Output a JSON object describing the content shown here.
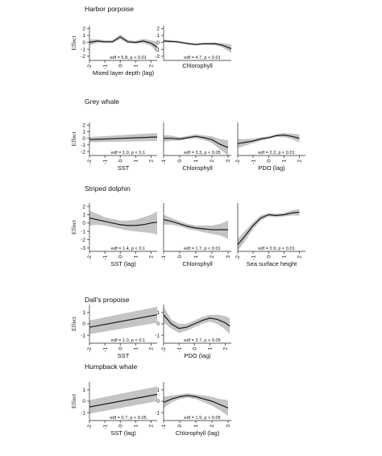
{
  "y_axis_label": "Effect",
  "chart_data": [
    {
      "type": "line",
      "group": "Harbor porpoise",
      "xlabel": "Mixed layer depth (lag)",
      "ylabel": "Effect",
      "annotation": "edf = 5.8, p < 0.01",
      "xlim": [
        -2,
        2.4
      ],
      "ylim": [
        -2.6,
        2.4
      ],
      "xticks": [
        "-2",
        "-1",
        "0",
        "1",
        "2"
      ],
      "yticks": [
        "-2",
        "-1",
        "0",
        "1",
        "2"
      ],
      "x": [
        -2,
        -1.5,
        -1,
        -0.5,
        0,
        0.5,
        1,
        1.5,
        2,
        2.4
      ],
      "y": [
        0.0,
        0.2,
        0.1,
        0.1,
        0.8,
        0.1,
        0.0,
        0.2,
        -0.1,
        -0.7
      ],
      "lower": [
        -0.45,
        -0.05,
        -0.1,
        -0.1,
        0.45,
        -0.15,
        -0.2,
        -0.1,
        -0.5,
        -1.5
      ],
      "upper": [
        0.45,
        0.45,
        0.3,
        0.3,
        1.15,
        0.35,
        0.2,
        0.5,
        0.3,
        0.1
      ]
    },
    {
      "type": "line",
      "group": "Harbor porpoise",
      "xlabel": "Chlorophyll",
      "ylabel": "",
      "annotation": "edf = 4.7, p < 0.01",
      "xlim": [
        -2,
        3.2
      ],
      "ylim": [
        -2.6,
        2.4
      ],
      "xticks": [],
      "yticks": [
        "-2",
        "-1",
        "0",
        "1",
        "2"
      ],
      "x": [
        -2,
        -1,
        0,
        0.5,
        1,
        2,
        2.5,
        3.2
      ],
      "y": [
        0.2,
        0.1,
        -0.2,
        -0.3,
        -0.2,
        -0.2,
        -0.4,
        -0.9
      ],
      "lower": [
        0.0,
        -0.05,
        -0.35,
        -0.45,
        -0.35,
        -0.4,
        -0.7,
        -1.5
      ],
      "upper": [
        0.4,
        0.25,
        -0.05,
        -0.15,
        -0.05,
        0.0,
        -0.1,
        -0.3
      ]
    },
    {
      "type": "line",
      "group": "Grey whale",
      "xlabel": "SST",
      "ylabel": "Effect",
      "annotation": "edf = 1.0, p < 0.1",
      "xlim": [
        -2,
        2.4
      ],
      "ylim": [
        -2.6,
        2.4
      ],
      "xticks": [
        "-2",
        "-1",
        "0",
        "1",
        "2"
      ],
      "yticks": [
        "-2",
        "-1",
        "0",
        "1",
        "2"
      ],
      "x": [
        -2,
        2.4
      ],
      "y": [
        -0.2,
        0.2
      ],
      "lower": [
        -0.6,
        -0.4
      ],
      "upper": [
        0.2,
        0.8
      ]
    },
    {
      "type": "line",
      "group": "Grey whale",
      "xlabel": "Chlorophyll",
      "ylabel": "",
      "annotation": "edf = 3.3, p < 0.05",
      "xlim": [
        -1,
        3.2
      ],
      "ylim": [
        -2.6,
        2.4
      ],
      "xticks": [
        "-1",
        "0",
        "1",
        "2",
        "3"
      ],
      "yticks": [],
      "x": [
        -1,
        -0.5,
        0,
        0.5,
        1,
        1.5,
        2,
        2.5,
        3
      ],
      "y": [
        0.0,
        0.0,
        -0.1,
        0.1,
        0.3,
        0.1,
        -0.2,
        -0.9,
        -1.4
      ],
      "lower": [
        -0.5,
        -0.4,
        -0.35,
        -0.15,
        0.0,
        -0.25,
        -0.7,
        -1.7,
        -2.6
      ],
      "upper": [
        0.5,
        0.4,
        0.15,
        0.35,
        0.6,
        0.45,
        0.3,
        -0.1,
        -0.3
      ]
    },
    {
      "type": "line",
      "group": "Grey whale",
      "xlabel": "PDO (lag)",
      "ylabel": "",
      "annotation": "edf = 2.2, p < 0.01",
      "xlim": [
        -2,
        2.4
      ],
      "ylim": [
        -2.6,
        2.4
      ],
      "xticks": [
        "-2",
        "-1",
        "0",
        "1",
        "2"
      ],
      "yticks": [],
      "x": [
        -2,
        -1.5,
        -1,
        -0.5,
        0,
        0.5,
        1,
        1.5,
        2
      ],
      "y": [
        -0.8,
        -0.6,
        -0.4,
        -0.1,
        0.1,
        0.4,
        0.5,
        0.3,
        0.0
      ],
      "lower": [
        -1.5,
        -1.1,
        -0.75,
        -0.35,
        -0.1,
        0.2,
        0.2,
        -0.1,
        -0.6
      ],
      "upper": [
        -0.1,
        -0.1,
        -0.05,
        0.15,
        0.3,
        0.6,
        0.8,
        0.7,
        0.6
      ]
    },
    {
      "type": "line",
      "group": "Striped dolphin",
      "xlabel": "SST (lag)",
      "ylabel": "Effect",
      "annotation": "edf = 1.4, p < 0.1",
      "xlim": [
        -2,
        2.4
      ],
      "ylim": [
        -3.4,
        2.4
      ],
      "xticks": [
        "-2",
        "-1",
        "0",
        "1",
        "2"
      ],
      "yticks": [
        "-3",
        "-2",
        "-1",
        "0",
        "1",
        "2"
      ],
      "x": [
        -2,
        -1.5,
        -1,
        -0.5,
        0,
        0.5,
        1,
        1.5,
        2,
        2.4
      ],
      "y": [
        0.6,
        0.4,
        0.2,
        0.0,
        -0.2,
        -0.3,
        -0.3,
        -0.2,
        0.0,
        0.1
      ],
      "lower": [
        -0.3,
        -0.2,
        -0.3,
        -0.5,
        -0.7,
        -0.9,
        -1.0,
        -1.1,
        -1.2,
        -1.4
      ],
      "upper": [
        1.5,
        1.1,
        0.7,
        0.5,
        0.3,
        0.3,
        0.4,
        0.7,
        1.0,
        1.4
      ]
    },
    {
      "type": "line",
      "group": "Striped dolphin",
      "xlabel": "Chlorophyll",
      "ylabel": "",
      "annotation": "edf = 1.7, p < 0.01",
      "xlim": [
        -1,
        3.2
      ],
      "ylim": [
        -3.4,
        2.4
      ],
      "xticks": [
        "-1",
        "0",
        "1",
        "2",
        "3"
      ],
      "yticks": [],
      "x": [
        -1,
        -0.5,
        0,
        0.5,
        1,
        1.5,
        2,
        2.5,
        3
      ],
      "y": [
        0.4,
        0.2,
        -0.1,
        -0.4,
        -0.6,
        -0.7,
        -0.8,
        -0.8,
        -0.8
      ],
      "lower": [
        -0.2,
        -0.2,
        -0.4,
        -0.7,
        -0.9,
        -1.1,
        -1.3,
        -1.5,
        -1.9
      ],
      "upper": [
        1.0,
        0.6,
        0.2,
        -0.1,
        -0.3,
        -0.3,
        -0.3,
        -0.1,
        0.3
      ]
    },
    {
      "type": "line",
      "group": "Striped dolphin",
      "xlabel": "Sea surface height",
      "ylabel": "",
      "annotation": "edf = 3.9, p < 0.01",
      "xlim": [
        -2,
        2.4
      ],
      "ylim": [
        -3.4,
        2.4
      ],
      "xticks": [
        "-2",
        "-1",
        "0",
        "1",
        "2"
      ],
      "yticks": [],
      "x": [
        -2,
        -1.5,
        -1,
        -0.5,
        0,
        0.5,
        1,
        1.5,
        2
      ],
      "y": [
        -2.6,
        -1.5,
        -0.3,
        0.6,
        1.0,
        0.9,
        1.0,
        1.2,
        1.3
      ],
      "lower": [
        -3.3,
        -2.1,
        -0.7,
        0.3,
        0.8,
        0.7,
        0.8,
        0.9,
        0.9
      ],
      "upper": [
        -1.9,
        -0.9,
        0.1,
        0.9,
        1.2,
        1.1,
        1.2,
        1.5,
        1.7
      ]
    },
    {
      "type": "line",
      "group": "Dall's propoise",
      "xlabel": "SST",
      "ylabel": "Effect",
      "annotation": "edf = 1.0, p < 0.1",
      "xlim": [
        -2,
        2.4
      ],
      "ylim": [
        -1.7,
        1.7
      ],
      "xticks": [
        "-2",
        "-1",
        "0",
        "1",
        "2"
      ],
      "yticks": [
        "-1",
        "0",
        "1"
      ],
      "x": [
        -2,
        2.4
      ],
      "y": [
        -0.3,
        0.8
      ],
      "lower": [
        -0.9,
        0.1
      ],
      "upper": [
        0.3,
        1.5
      ]
    },
    {
      "type": "line",
      "group": "Dall's propoise",
      "xlabel": "PDO (lag)",
      "ylabel": "",
      "annotation": "edf = 3.7, p < 0.05",
      "xlim": [
        -2,
        2.4
      ],
      "ylim": [
        -1.7,
        1.7
      ],
      "xticks": [
        "-2",
        "-1",
        "0",
        "1",
        "2"
      ],
      "yticks": [
        "-1",
        "0",
        "1"
      ],
      "x": [
        -2,
        -1.5,
        -1,
        -0.5,
        0,
        0.5,
        1,
        1.5,
        2,
        2.3
      ],
      "y": [
        0.8,
        0.0,
        -0.4,
        -0.3,
        0.0,
        0.3,
        0.5,
        0.4,
        0.1,
        -0.2
      ],
      "lower": [
        0.1,
        -0.4,
        -0.8,
        -0.6,
        -0.3,
        0.0,
        0.2,
        0.0,
        -0.5,
        -0.9
      ],
      "upper": [
        1.5,
        0.4,
        0.0,
        0.0,
        0.3,
        0.6,
        0.8,
        0.8,
        0.7,
        0.5
      ]
    },
    {
      "type": "line",
      "group": "Humpback whale",
      "xlabel": "SST (lag)",
      "ylabel": "Effect",
      "annotation": "edf = 0.7, p < 0.05",
      "xlim": [
        -2,
        2.4
      ],
      "ylim": [
        -1.7,
        1.7
      ],
      "xticks": [
        "-2",
        "-1",
        "0",
        "1",
        "2"
      ],
      "yticks": [
        "-1",
        "0",
        "1"
      ],
      "x": [
        -2,
        2.4
      ],
      "y": [
        -0.5,
        0.6
      ],
      "lower": [
        -1.1,
        0.0
      ],
      "upper": [
        0.1,
        1.3
      ]
    },
    {
      "type": "line",
      "group": "Humpback whale",
      "xlabel": "Chlorophyll (lag)",
      "ylabel": "",
      "annotation": "edf = 1.9, p < 0.05",
      "xlim": [
        -1,
        3.2
      ],
      "ylim": [
        -1.7,
        1.7
      ],
      "xticks": [
        "-1",
        "0",
        "1",
        "2",
        "3"
      ],
      "yticks": [
        "-1",
        "0",
        "1"
      ],
      "x": [
        -1,
        -0.5,
        0,
        0.5,
        1,
        1.5,
        2,
        2.5,
        3
      ],
      "y": [
        -0.1,
        0.2,
        0.4,
        0.5,
        0.4,
        0.2,
        0.0,
        -0.3,
        -0.6
      ],
      "lower": [
        -0.6,
        -0.1,
        0.2,
        0.3,
        0.2,
        -0.1,
        -0.4,
        -0.8,
        -1.3
      ],
      "upper": [
        0.4,
        0.5,
        0.6,
        0.7,
        0.6,
        0.5,
        0.4,
        0.2,
        0.1
      ]
    }
  ],
  "groups": [
    {
      "title": "Harbor porpoise"
    },
    {
      "title": "Grey whale"
    },
    {
      "title": "Striped dolphin"
    },
    {
      "title": "Dall's propoise"
    },
    {
      "title": "Humpback whale"
    }
  ]
}
